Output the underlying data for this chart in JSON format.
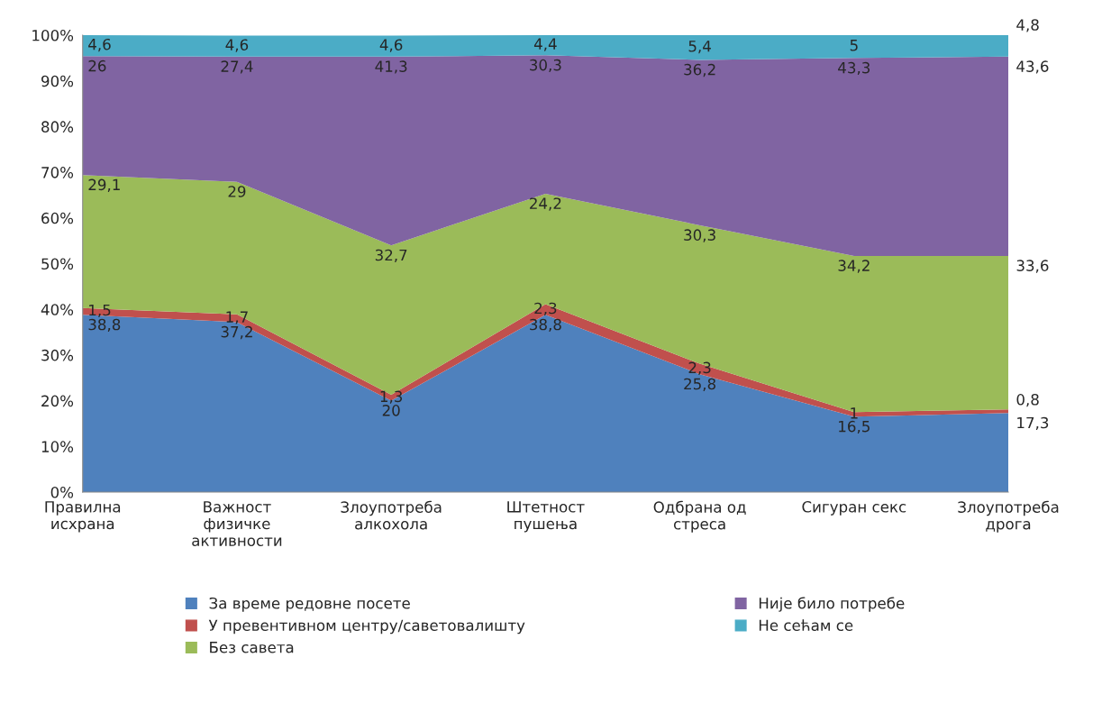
{
  "chart_data": {
    "type": "area",
    "stacked": true,
    "categories": [
      "Правилна\nисхрана",
      "Важност\nфизичке\nактивности",
      "Злоупотреба\nалкохола",
      "Штетност\nпушења",
      "Одбрана од\nстреса",
      "Сигуран секс",
      "Злоупотреба\nдрога"
    ],
    "series": [
      {
        "name": "За време редовне посете",
        "color": "#4f81bd",
        "values": [
          38.8,
          37.2,
          20,
          38.8,
          25.8,
          16.5,
          17.3
        ],
        "value_labels": [
          "38,8",
          "37,2",
          "20",
          "38,8",
          "25,8",
          "16,5",
          "17,3"
        ]
      },
      {
        "name": "У превентивном центру/саветовалишту",
        "color": "#c0504d",
        "values": [
          1.5,
          1.7,
          1.3,
          2.3,
          2.3,
          1,
          0.8
        ],
        "value_labels": [
          "1,5",
          "1,7",
          "1,3",
          "2,3",
          "2,3",
          "1",
          "0,8"
        ]
      },
      {
        "name": "Без савета",
        "color": "#9bbb59",
        "values": [
          29.1,
          29,
          32.7,
          24.2,
          30.3,
          34.2,
          33.6
        ],
        "value_labels": [
          "29,1",
          "29",
          "32,7",
          "24,2",
          "30,3",
          "34,2",
          "33,6"
        ]
      },
      {
        "name": "Није било потребе",
        "color": "#8064a2",
        "values": [
          26,
          27.4,
          41.3,
          30.3,
          36.2,
          43.3,
          43.6
        ],
        "value_labels": [
          "26",
          "27,4",
          "41,3",
          "30,3",
          "36,2",
          "43,3",
          "43,6"
        ]
      },
      {
        "name": "Не сећам се",
        "color": "#4bacc6",
        "values": [
          4.6,
          4.6,
          4.6,
          4.4,
          5.4,
          5,
          4.8
        ],
        "value_labels": [
          "4,6",
          "4,6",
          "4,6",
          "4,4",
          "5,4",
          "5",
          "4,8"
        ]
      }
    ],
    "ylim": [
      0,
      100
    ],
    "yticks": [
      {
        "value": 0,
        "label": "0%"
      },
      {
        "value": 10,
        "label": "10%"
      },
      {
        "value": 20,
        "label": "20%"
      },
      {
        "value": 30,
        "label": "30%"
      },
      {
        "value": 40,
        "label": "40%"
      },
      {
        "value": 50,
        "label": "50%"
      },
      {
        "value": 60,
        "label": "60%"
      },
      {
        "value": 70,
        "label": "70%"
      },
      {
        "value": 80,
        "label": "80%"
      },
      {
        "value": 90,
        "label": "90%"
      },
      {
        "value": 100,
        "label": "100%"
      }
    ],
    "grid": false,
    "legend": "bottom"
  }
}
